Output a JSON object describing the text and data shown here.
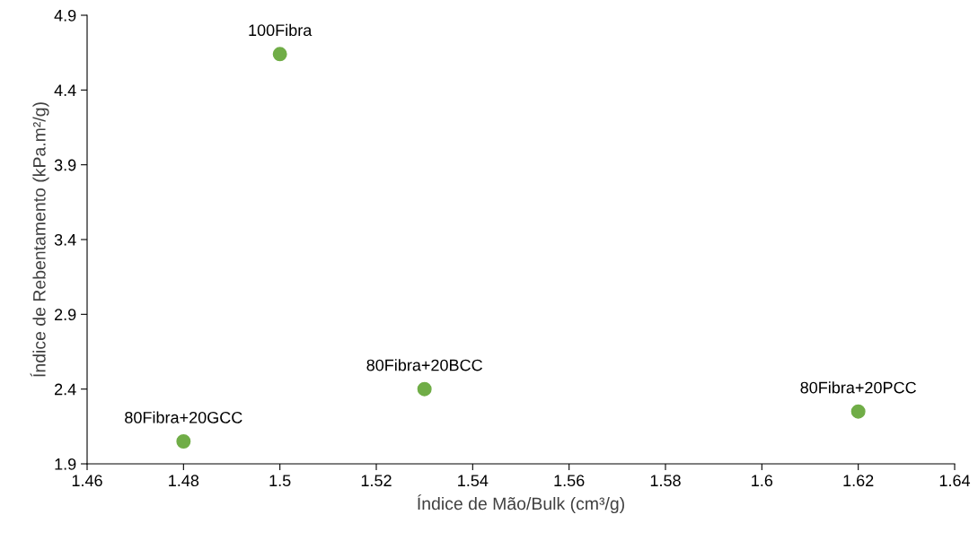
{
  "chart_data": {
    "type": "scatter",
    "xlabel": "Índice de Mão/Bulk (cm³/g)",
    "ylabel": "Índice de Rebentamento (kPa.m²/g)",
    "x": [
      1.5,
      1.53,
      1.48,
      1.62
    ],
    "values": [
      4.64,
      2.4,
      2.05,
      2.25
    ],
    "color": "#70ad47",
    "marker": "circle",
    "xlim": [
      1.46,
      1.64
    ],
    "xticks": [
      1.46,
      1.48,
      1.5,
      1.52,
      1.54,
      1.56,
      1.58,
      1.6,
      1.62,
      1.64
    ],
    "ylim": [
      1.9,
      4.9
    ],
    "yticks": [
      1.9,
      2.4,
      2.9,
      3.4,
      3.9,
      4.4,
      4.9
    ],
    "grid": false,
    "legend": false,
    "annotations": [
      {
        "text": "100Fibra",
        "x": 1.5,
        "y": 4.64
      },
      {
        "text": "80Fibra+20BCC",
        "x": 1.53,
        "y": 2.4
      },
      {
        "text": "80Fibra+20GCC",
        "x": 1.48,
        "y": 2.05
      },
      {
        "text": "80Fibra+20PCC",
        "x": 1.62,
        "y": 2.25
      }
    ]
  }
}
